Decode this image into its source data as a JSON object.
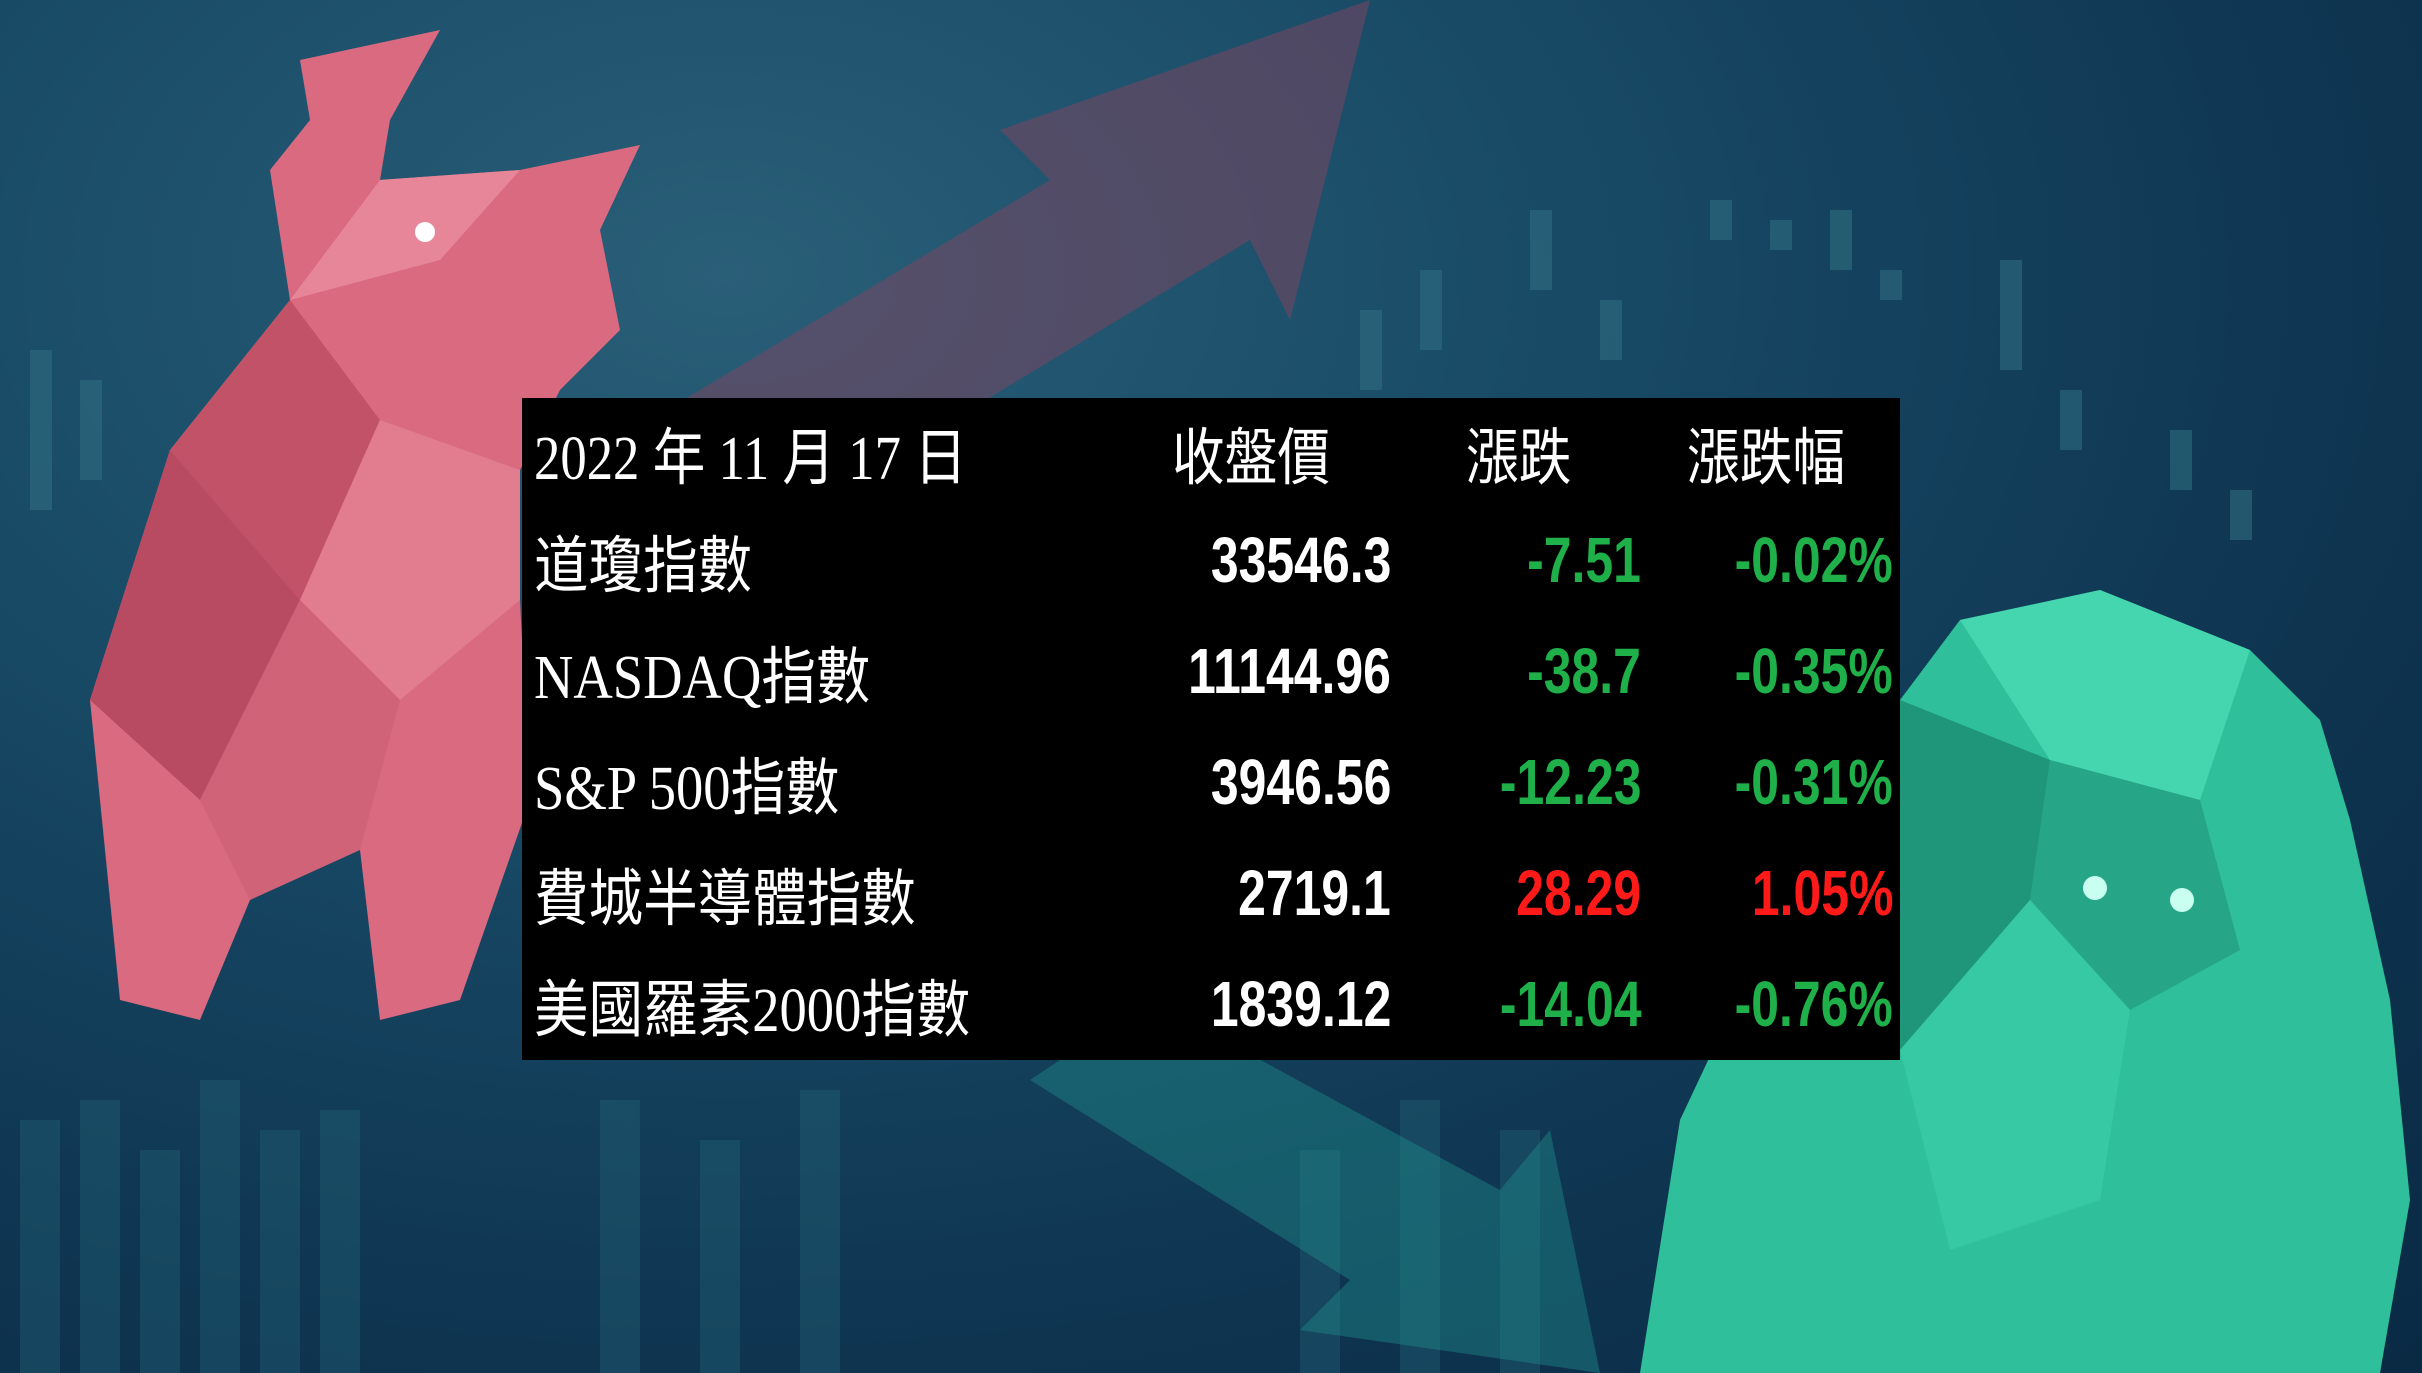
{
  "header": {
    "date": "2022 年 11 月 17 日",
    "close": "收盤價",
    "change": "漲跌",
    "change_pct": "漲跌幅"
  },
  "rows": [
    {
      "name": "道瓊指數",
      "close": "33546.3",
      "change": "-7.51",
      "pct": "-0.02%",
      "trend": "down"
    },
    {
      "name": "NASDAQ指數",
      "close": "11144.96",
      "change": "-38.7",
      "pct": "-0.35%",
      "trend": "down"
    },
    {
      "name": "S&P 500指數",
      "close": "3946.56",
      "change": "-12.23",
      "pct": "-0.31%",
      "trend": "down"
    },
    {
      "name": "費城半導體指數",
      "close": "2719.1",
      "change": "28.29",
      "pct": "1.05%",
      "trend": "up"
    },
    {
      "name": "美國羅素2000指數",
      "close": "1839.12",
      "change": "-14.04",
      "pct": "-0.76%",
      "trend": "down"
    }
  ],
  "colors": {
    "up": "#ff1a1a",
    "down": "#1fb04a",
    "background": "#184a66"
  },
  "illustration": {
    "left": "bull-icon",
    "right": "bear-icon"
  }
}
